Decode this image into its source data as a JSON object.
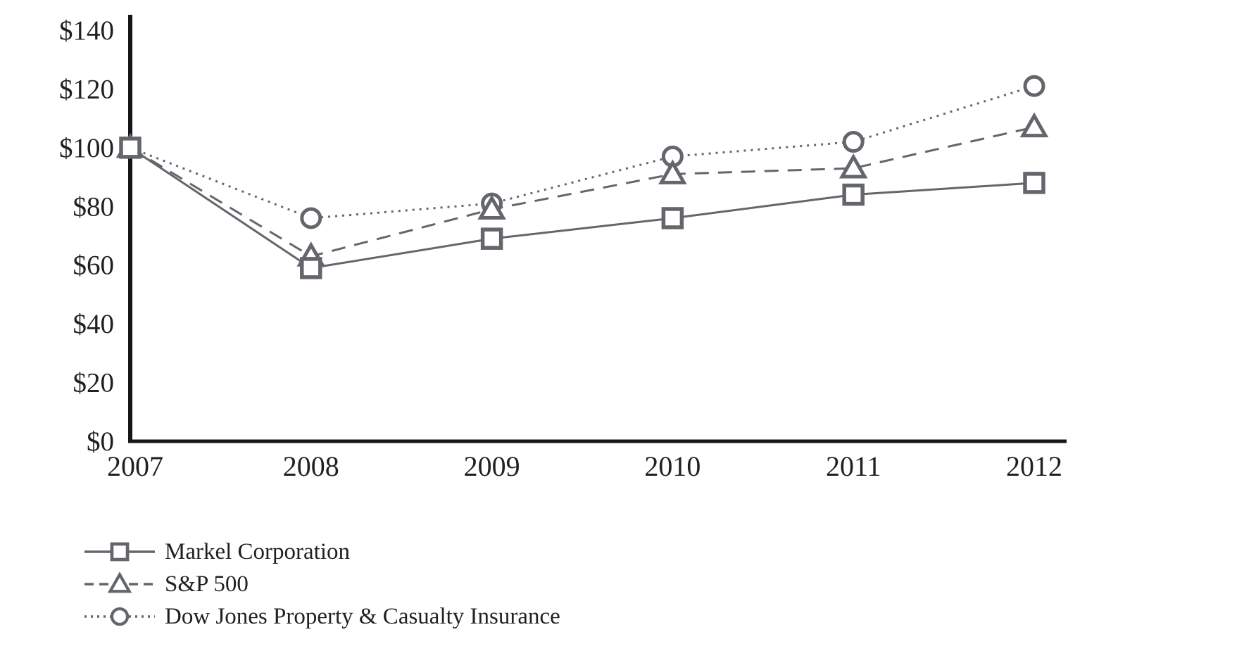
{
  "chart_data": {
    "type": "line",
    "title": "",
    "xlabel": "",
    "ylabel": "",
    "categories": [
      "2007",
      "2008",
      "2009",
      "2010",
      "2011",
      "2012"
    ],
    "series": [
      {
        "name": "Markel Corporation",
        "marker": "square",
        "line_style": "solid",
        "values": [
          100,
          59,
          69,
          76,
          84,
          88
        ]
      },
      {
        "name": "S&P 500",
        "marker": "triangle",
        "line_style": "dashed",
        "values": [
          100,
          63,
          79,
          91,
          93,
          107
        ]
      },
      {
        "name": "Dow Jones Property & Casualty Insurance",
        "marker": "circle",
        "line_style": "dotted",
        "values": [
          100,
          76,
          81,
          97,
          102,
          121
        ]
      }
    ],
    "ylim": [
      0,
      140
    ],
    "ytick_step": 20,
    "ytick_prefix": "$",
    "ytick_labels": [
      "$0",
      "$20",
      "$40",
      "$60",
      "$80",
      "$100",
      "$120",
      "$140"
    ],
    "grid": false,
    "legend_position": "bottom-left",
    "colors": {
      "series_stroke": "#63666b",
      "marker_fill": "#ffffff",
      "axis": "#161616",
      "tick_text": "#231f20",
      "background": "#ffffff"
    }
  }
}
